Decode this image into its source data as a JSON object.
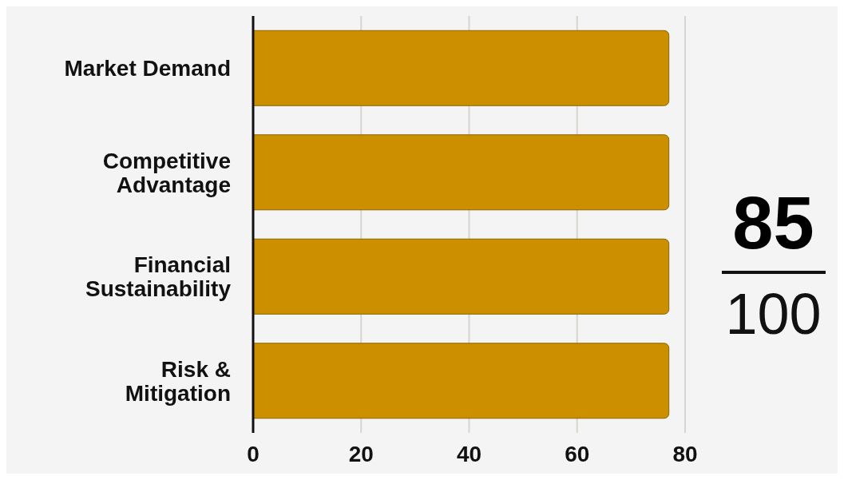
{
  "chart_data": {
    "type": "bar",
    "orientation": "horizontal",
    "categories": [
      "Market Demand",
      "Competitive Advantage",
      "Financial Sustainability",
      "Risk & Mitigation"
    ],
    "values": [
      77,
      77,
      77,
      77
    ],
    "color": "#cc8f00",
    "xlim": [
      0,
      80
    ],
    "xticks": [
      0,
      20,
      40,
      60,
      80
    ],
    "grid": "x",
    "annotations": [
      "85",
      "100"
    ]
  }
}
